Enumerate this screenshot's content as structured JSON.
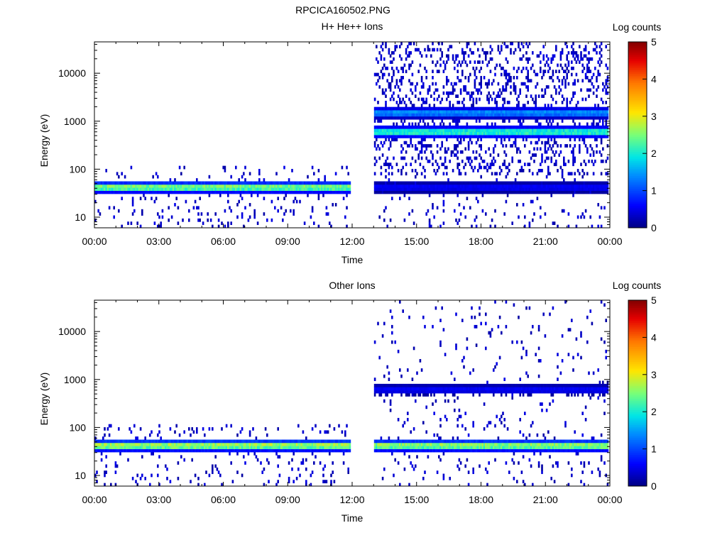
{
  "figure_title": "RPCICA160502.PNG",
  "chart_data": [
    {
      "type": "heatmap",
      "title": "H+ He++ Ions",
      "xlabel": "Time",
      "ylabel": "Energy (eV)",
      "y_scale": "log",
      "xlim": [
        0,
        24
      ],
      "ylim": [
        6,
        45000
      ],
      "x_ticks": [
        "00:00",
        "03:00",
        "06:00",
        "09:00",
        "12:00",
        "15:00",
        "18:00",
        "21:00",
        "00:00"
      ],
      "y_ticks": [
        "10",
        "100",
        "1000",
        "10000"
      ],
      "colorbar": {
        "label": "Log counts",
        "min": 0,
        "max": 5,
        "ticks": [
          "0",
          "1",
          "2",
          "3",
          "4",
          "5"
        ]
      },
      "data_gap_hours": [
        11.9,
        13.0
      ],
      "bands": [
        {
          "start_h": 0.0,
          "end_h": 11.9,
          "e_center": 42,
          "log_counts_peak": 2.7
        },
        {
          "start_h": 13.0,
          "end_h": 23.9,
          "e_center": 42,
          "log_counts_peak": 0.6
        },
        {
          "start_h": 13.0,
          "end_h": 23.9,
          "e_center": 600,
          "log_counts_peak": 2.3
        },
        {
          "start_h": 13.0,
          "end_h": 23.9,
          "e_center": 1500,
          "log_counts_peak": 1.5
        }
      ]
    },
    {
      "type": "heatmap",
      "title": "Other Ions",
      "xlabel": "Time",
      "ylabel": "Energy (eV)",
      "y_scale": "log",
      "xlim": [
        0,
        24
      ],
      "ylim": [
        6,
        45000
      ],
      "x_ticks": [
        "00:00",
        "03:00",
        "06:00",
        "09:00",
        "12:00",
        "15:00",
        "18:00",
        "21:00",
        "00:00"
      ],
      "y_ticks": [
        "10",
        "100",
        "1000",
        "10000"
      ],
      "colorbar": {
        "label": "Log counts",
        "min": 0,
        "max": 5,
        "ticks": [
          "0",
          "1",
          "2",
          "3",
          "4",
          "5"
        ]
      },
      "data_gap_hours": [
        11.9,
        13.0
      ],
      "bands": [
        {
          "start_h": 0.0,
          "end_h": 11.9,
          "e_center": 42,
          "log_counts_peak": 2.9
        },
        {
          "start_h": 13.0,
          "end_h": 23.9,
          "e_center": 42,
          "log_counts_peak": 2.8
        },
        {
          "start_h": 13.0,
          "end_h": 23.9,
          "e_center": 620,
          "log_counts_peak": 0.6
        }
      ]
    }
  ]
}
